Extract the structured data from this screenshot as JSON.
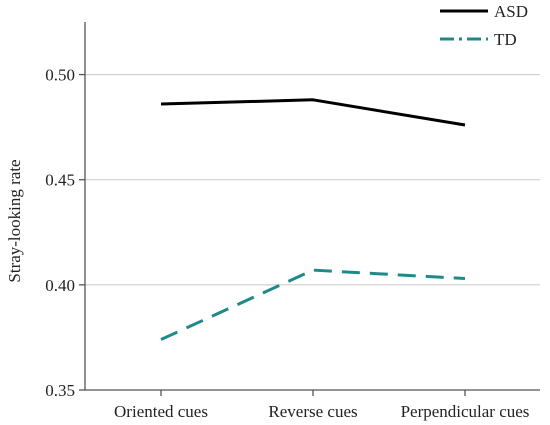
{
  "chart_data": {
    "type": "line",
    "categories": [
      "Oriented cues",
      "Reverse cues",
      "Perpendicular cues"
    ],
    "series": [
      {
        "name": "ASD",
        "values": [
          0.486,
          0.488,
          0.476
        ],
        "color": "#000000",
        "dash": "solid"
      },
      {
        "name": "TD",
        "values": [
          0.374,
          0.407,
          0.403
        ],
        "color": "#1f8a8a",
        "dash": "dashed"
      }
    ],
    "title": "",
    "xlabel": "",
    "ylabel": "Stray-looking rate",
    "ylim": [
      0.35,
      0.525
    ],
    "yticks": [
      "0.35",
      "0.40",
      "0.45",
      "0.50"
    ],
    "grid": "horizontal",
    "legend": "top-right"
  }
}
